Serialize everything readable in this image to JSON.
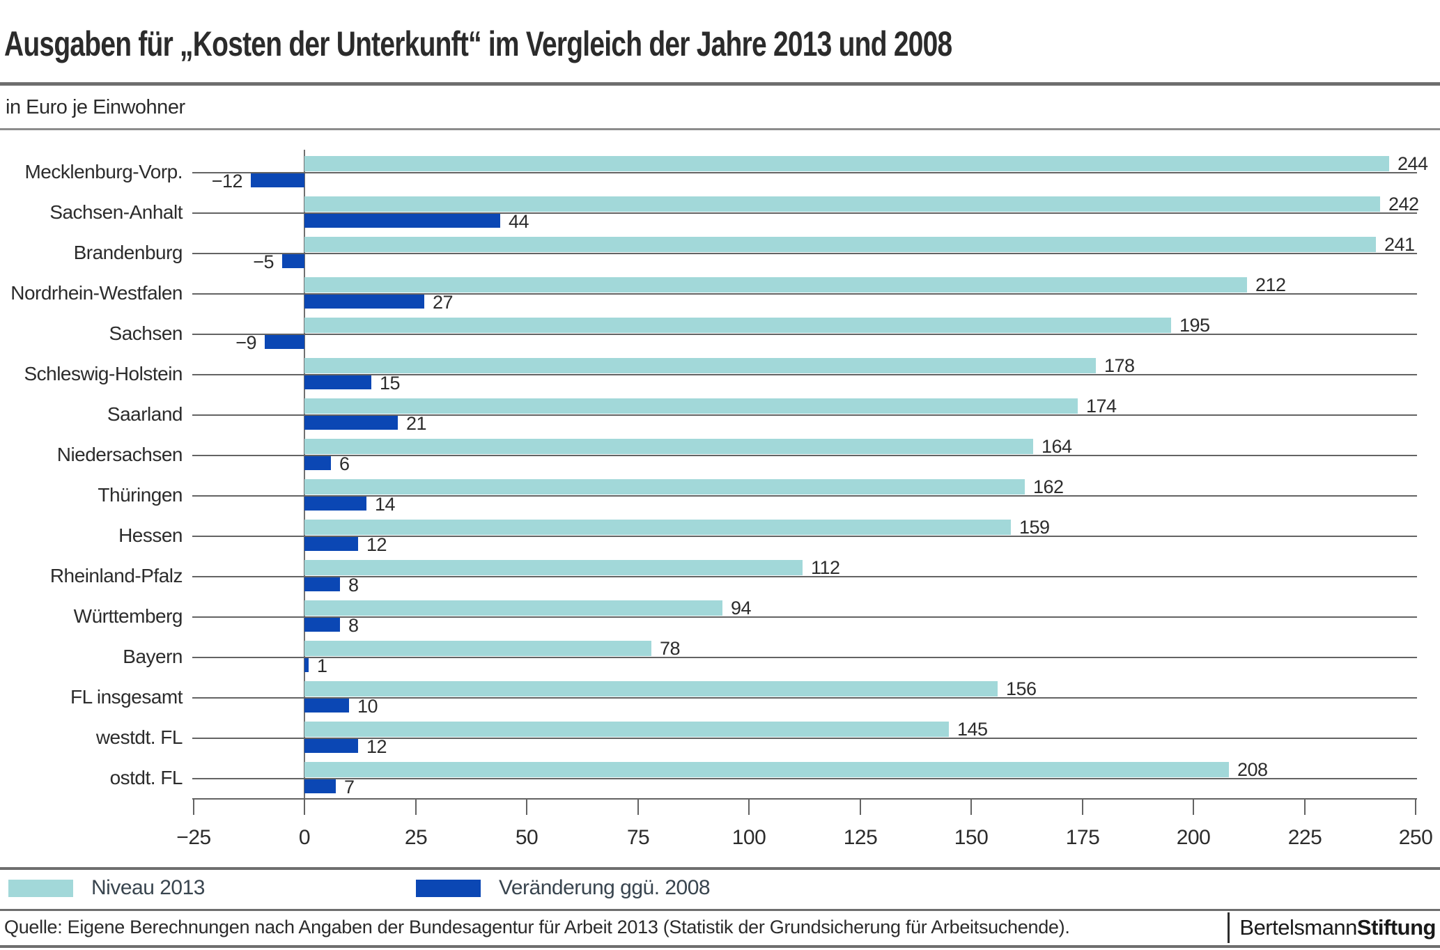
{
  "title": "Ausgaben für „Kosten der Unterkunft“ im Vergleich der Jahre 2013 und 2008",
  "subtitle": "in Euro je Einwohner",
  "chart_data": {
    "type": "bar",
    "orientation": "horizontal",
    "categories": [
      "Mecklenburg-Vorp.",
      "Sachsen-Anhalt",
      "Brandenburg",
      "Nordrhein-Westfalen",
      "Sachsen",
      "Schleswig-Holstein",
      "Saarland",
      "Niedersachsen",
      "Thüringen",
      "Hessen",
      "Rheinland-Pfalz",
      "Württemberg",
      "Bayern",
      "FL insgesamt",
      "westdt. FL",
      "ostdt. FL"
    ],
    "series": [
      {
        "name": "Niveau 2013",
        "color": "#a2d8d9",
        "values": [
          244,
          242,
          241,
          212,
          195,
          178,
          174,
          164,
          162,
          159,
          112,
          94,
          78,
          156,
          145,
          208
        ]
      },
      {
        "name": "Veränderung ggü. 2008",
        "color": "#0b47b4",
        "values": [
          -12,
          44,
          -5,
          27,
          -9,
          15,
          21,
          6,
          14,
          12,
          8,
          8,
          1,
          10,
          12,
          7
        ]
      }
    ],
    "xlim": [
      -25,
      250
    ],
    "xticks": [
      -25,
      0,
      25,
      50,
      75,
      100,
      125,
      150,
      175,
      200,
      225,
      250
    ],
    "xtick_labels": [
      "−25",
      "0",
      "25",
      "50",
      "75",
      "100",
      "125",
      "150",
      "175",
      "200",
      "225",
      "250"
    ],
    "grid": "horizontal leader line per category",
    "legend_position": "bottom",
    "value_labels": "shown at bar ends"
  },
  "legend": {
    "items": [
      {
        "label": "Niveau 2013",
        "color": "#a2d8d9"
      },
      {
        "label": "Veränderung ggü. 2008",
        "color": "#0b47b4"
      }
    ]
  },
  "footer": {
    "source": "Quelle: Eigene Berechnungen nach Angaben der Bundesagentur für Arbeit 2013 (Statistik der Grundsicherung für Arbeitsuchende).",
    "brand_part1": "Bertelsmann",
    "brand_part2": "Stiftung"
  }
}
